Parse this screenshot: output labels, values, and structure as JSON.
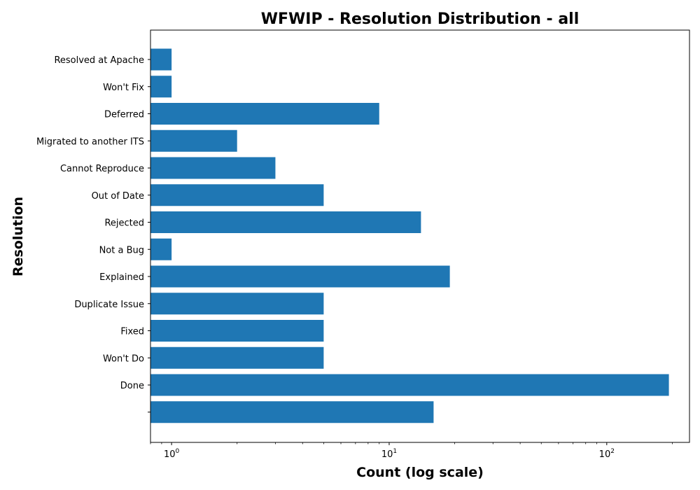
{
  "chart_data": {
    "type": "bar",
    "orientation": "horizontal",
    "title": "WFWIP - Resolution Distribution - all",
    "xlabel": "Count (log scale)",
    "ylabel": "Resolution",
    "x_scale": "log",
    "xlim": [
      0.8,
      240
    ],
    "x_ticks": [
      {
        "base": "10",
        "exp": "0",
        "value": 1
      },
      {
        "base": "10",
        "exp": "1",
        "value": 10
      },
      {
        "base": "10",
        "exp": "2",
        "value": 100
      }
    ],
    "bar_color": "#1f77b4",
    "grid": false,
    "categories": [
      "Resolved at Apache",
      "Won't Fix",
      "Deferred",
      "Migrated to another ITS",
      "Cannot Reproduce",
      "Out of Date",
      "Rejected",
      "Not a Bug",
      "Explained",
      "Duplicate Issue",
      "Fixed",
      "Won't Do",
      "Done",
      ""
    ],
    "values": [
      1,
      1,
      9,
      2,
      3,
      5,
      14,
      1,
      19,
      5,
      5,
      5,
      193,
      16
    ]
  }
}
